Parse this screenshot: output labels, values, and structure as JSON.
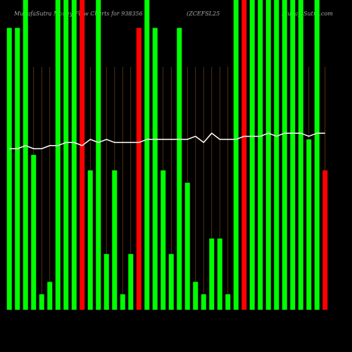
{
  "chart_data": {
    "type": "bar",
    "title": "MunafaSutra  Money Flow  Charts for 938356",
    "subtitle": "(ZCEFSL25",
    "credit": "MunafaSutra.com",
    "categories": [
      null,
      null,
      null,
      null,
      null,
      null,
      null,
      null,
      null,
      null,
      null,
      null,
      null,
      null,
      null,
      null,
      null,
      null,
      null,
      null,
      null,
      null,
      null,
      null,
      null,
      null,
      null,
      null,
      null,
      null,
      null,
      null,
      null,
      null,
      null,
      null,
      null,
      null,
      null,
      null
    ],
    "ylim": [
      0,
      100
    ],
    "series": [
      {
        "type": "bar",
        "values": [
          91,
          91,
          100,
          50,
          5,
          9,
          100,
          100,
          100,
          100,
          45,
          100,
          18,
          45,
          5,
          18,
          91,
          100,
          91,
          45,
          18,
          91,
          41,
          9,
          5,
          23,
          23,
          5,
          100,
          100,
          100,
          100,
          100,
          100,
          100,
          100,
          100,
          55,
          100,
          45
        ],
        "colors": [
          "#00ff00",
          "#00ff00",
          "#00ff00",
          "#00ff00",
          "#00ff00",
          "#00ff00",
          "#00ff00",
          "#00ff00",
          "#00ff00",
          "#ff0000",
          "#00ff00",
          "#00ff00",
          "#00ff00",
          "#00ff00",
          "#00ff00",
          "#00ff00",
          "#ff0000",
          "#00ff00",
          "#00ff00",
          "#00ff00",
          "#00ff00",
          "#00ff00",
          "#00ff00",
          "#00ff00",
          "#00ff00",
          "#00ff00",
          "#00ff00",
          "#00ff00",
          "#00ff00",
          "#ff0000",
          "#00ff00",
          "#00ff00",
          "#00ff00",
          "#00ff00",
          "#00ff00",
          "#00ff00",
          "#00ff00",
          "#00ff00",
          "#00ff00",
          "#ff0000"
        ]
      },
      {
        "type": "line",
        "color": "#ffffff",
        "values": [
          52,
          52,
          53,
          52,
          52,
          53,
          53,
          54,
          54,
          53,
          55,
          54,
          55,
          54,
          54,
          54,
          54,
          55,
          55,
          55,
          55,
          55,
          55,
          56,
          54,
          57,
          55,
          55,
          55,
          56,
          56,
          56,
          57,
          56,
          57,
          57,
          57,
          56,
          57,
          57
        ]
      }
    ]
  }
}
